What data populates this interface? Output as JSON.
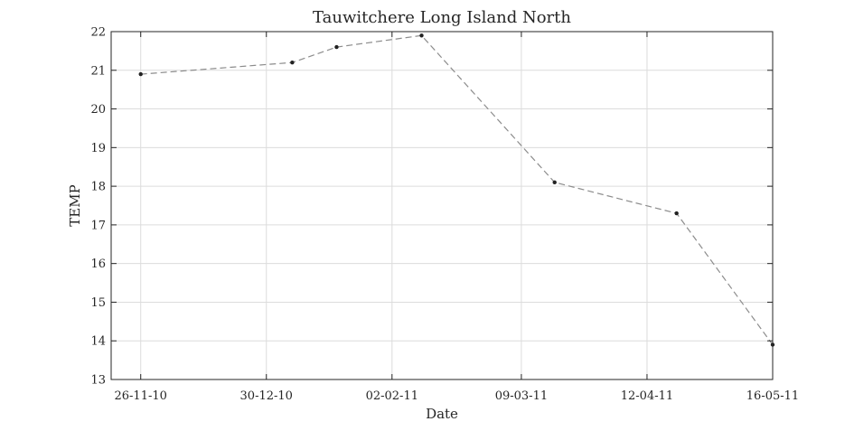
{
  "chart_data": {
    "type": "line",
    "title": "Tauwitchere Long Island North",
    "xlabel": "Date",
    "ylabel": "TEMP",
    "x_tick_labels": [
      "26-11-10",
      "30-12-10",
      "02-02-11",
      "09-03-11",
      "12-04-11",
      "16-05-11"
    ],
    "x_tick_dates": [
      "2010-11-26",
      "2010-12-30",
      "2011-02-02",
      "2011-03-09",
      "2011-04-12",
      "2011-05-16"
    ],
    "xlim": [
      "2010-11-18",
      "2011-05-16"
    ],
    "y_ticks": [
      13,
      14,
      15,
      16,
      17,
      18,
      19,
      20,
      21,
      22
    ],
    "ylim": [
      13,
      22
    ],
    "grid": true,
    "line_style": "dashed",
    "line_color": "#8c8c8c",
    "marker_color": "#222222",
    "series": [
      {
        "x": [
          "2010-11-26",
          "2011-01-06",
          "2011-01-18",
          "2011-02-10",
          "2011-03-18",
          "2011-04-20",
          "2011-05-16"
        ],
        "y": [
          20.9,
          21.2,
          21.6,
          21.9,
          18.1,
          17.3,
          13.9
        ]
      }
    ]
  }
}
